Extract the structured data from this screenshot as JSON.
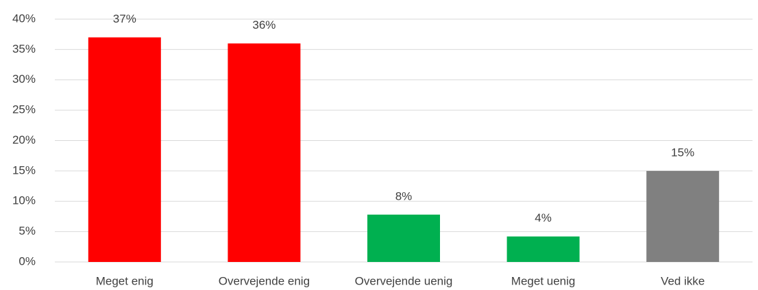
{
  "chart_data": {
    "type": "bar",
    "categories": [
      "Meget enig",
      "Overvejende enig",
      "Overvejende uenig",
      "Meget uenig",
      "Ved ikke"
    ],
    "values": [
      37,
      36,
      7.8,
      4.2,
      15
    ],
    "value_labels": [
      "37%",
      "36%",
      "8%",
      "4%",
      "15%"
    ],
    "colors": [
      "#ff0000",
      "#ff0000",
      "#00b050",
      "#00b050",
      "#808080"
    ],
    "ylim": [
      0,
      40
    ],
    "yticks": [
      {
        "value": 0,
        "label": "0%"
      },
      {
        "value": 5,
        "label": "5%"
      },
      {
        "value": 10,
        "label": "10%"
      },
      {
        "value": 15,
        "label": "15%"
      },
      {
        "value": 20,
        "label": "20%"
      },
      {
        "value": 25,
        "label": "25%"
      },
      {
        "value": 30,
        "label": "30%"
      },
      {
        "value": 35,
        "label": "35%"
      },
      {
        "value": 40,
        "label": "40%"
      }
    ],
    "grid": true
  }
}
